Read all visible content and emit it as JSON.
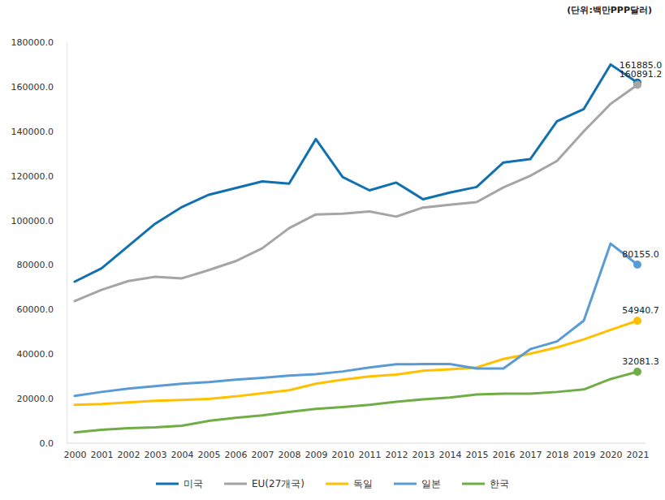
{
  "chart_data": {
    "type": "line",
    "subtitle": "(단위:백만PPP달러)",
    "categories": [
      "2000",
      "2001",
      "2002",
      "2003",
      "2004",
      "2005",
      "2006",
      "2007",
      "2008",
      "2009",
      "2010",
      "2011",
      "2012",
      "2013",
      "2014",
      "2015",
      "2016",
      "2017",
      "2018",
      "2019",
      "2020",
      "2021"
    ],
    "ylim": [
      0,
      180000
    ],
    "yticks": [
      {
        "value": 0,
        "label": "0.0"
      },
      {
        "value": 20000,
        "label": "20000.0"
      },
      {
        "value": 40000,
        "label": "40000.0"
      },
      {
        "value": 60000,
        "label": "60000.0"
      },
      {
        "value": 80000,
        "label": "80000.0"
      },
      {
        "value": 100000,
        "label": "100000.0"
      },
      {
        "value": 120000,
        "label": "120000.0"
      },
      {
        "value": 140000,
        "label": "140000.0"
      },
      {
        "value": 160000,
        "label": "160000.0"
      },
      {
        "value": 180000,
        "label": "180000.0"
      }
    ],
    "grid": false,
    "legend": "bottom",
    "series": [
      {
        "name": "미국",
        "color": "#1170b0",
        "values": [
          72500,
          78500,
          88500,
          98500,
          106000,
          111500,
          114500,
          117500,
          116500,
          136500,
          119500,
          113500,
          117000,
          109500,
          112500,
          115000,
          126000,
          127500,
          144500,
          150000,
          170000,
          161885.0
        ],
        "value_labels": [
          null,
          null,
          null,
          null,
          null,
          null,
          null,
          null,
          null,
          null,
          null,
          null,
          null,
          null,
          null,
          null,
          null,
          null,
          null,
          null,
          null,
          "161885.0"
        ]
      },
      {
        "name": "EU(27개국)",
        "color": "#a5a5a5",
        "values": [
          63800,
          68800,
          72800,
          74700,
          74000,
          77700,
          81700,
          87500,
          96500,
          102700,
          103000,
          104000,
          101700,
          105800,
          107000,
          108200,
          114800,
          120000,
          126700,
          140000,
          152300,
          160891.2
        ],
        "value_labels": [
          null,
          null,
          null,
          null,
          null,
          null,
          null,
          null,
          null,
          null,
          null,
          null,
          null,
          null,
          null,
          null,
          null,
          null,
          null,
          null,
          null,
          "160891.2"
        ]
      },
      {
        "name": "독일",
        "color": "#ffc000",
        "values": [
          17200,
          17600,
          18300,
          19000,
          19400,
          19900,
          21000,
          22400,
          23800,
          26700,
          28500,
          30000,
          30800,
          32500,
          33200,
          34000,
          37800,
          40200,
          43000,
          46600,
          50900,
          54940.7
        ],
        "value_labels": [
          null,
          null,
          null,
          null,
          null,
          null,
          null,
          null,
          null,
          null,
          null,
          null,
          null,
          null,
          null,
          null,
          null,
          null,
          null,
          null,
          null,
          "54940.7"
        ]
      },
      {
        "name": "일본",
        "color": "#5b9bd5",
        "values": [
          21200,
          23000,
          24500,
          25600,
          26700,
          27400,
          28500,
          29300,
          30300,
          31000,
          32200,
          34000,
          35400,
          35500,
          35500,
          33500,
          33500,
          42200,
          45700,
          55000,
          89600,
          80155.0
        ],
        "value_labels": [
          null,
          null,
          null,
          null,
          null,
          null,
          null,
          null,
          null,
          null,
          null,
          null,
          null,
          null,
          null,
          null,
          null,
          null,
          null,
          null,
          null,
          "80155.0"
        ]
      },
      {
        "name": "한국",
        "color": "#70ad47",
        "values": [
          4800,
          6000,
          6700,
          7100,
          7800,
          10000,
          11400,
          12500,
          14000,
          15400,
          16200,
          17200,
          18600,
          19700,
          20500,
          21900,
          22200,
          22200,
          23000,
          24100,
          28800,
          32081.3
        ],
        "value_labels": [
          null,
          null,
          null,
          null,
          null,
          null,
          null,
          null,
          null,
          null,
          null,
          null,
          null,
          null,
          null,
          null,
          null,
          null,
          null,
          null,
          null,
          "32081.3"
        ]
      }
    ]
  }
}
